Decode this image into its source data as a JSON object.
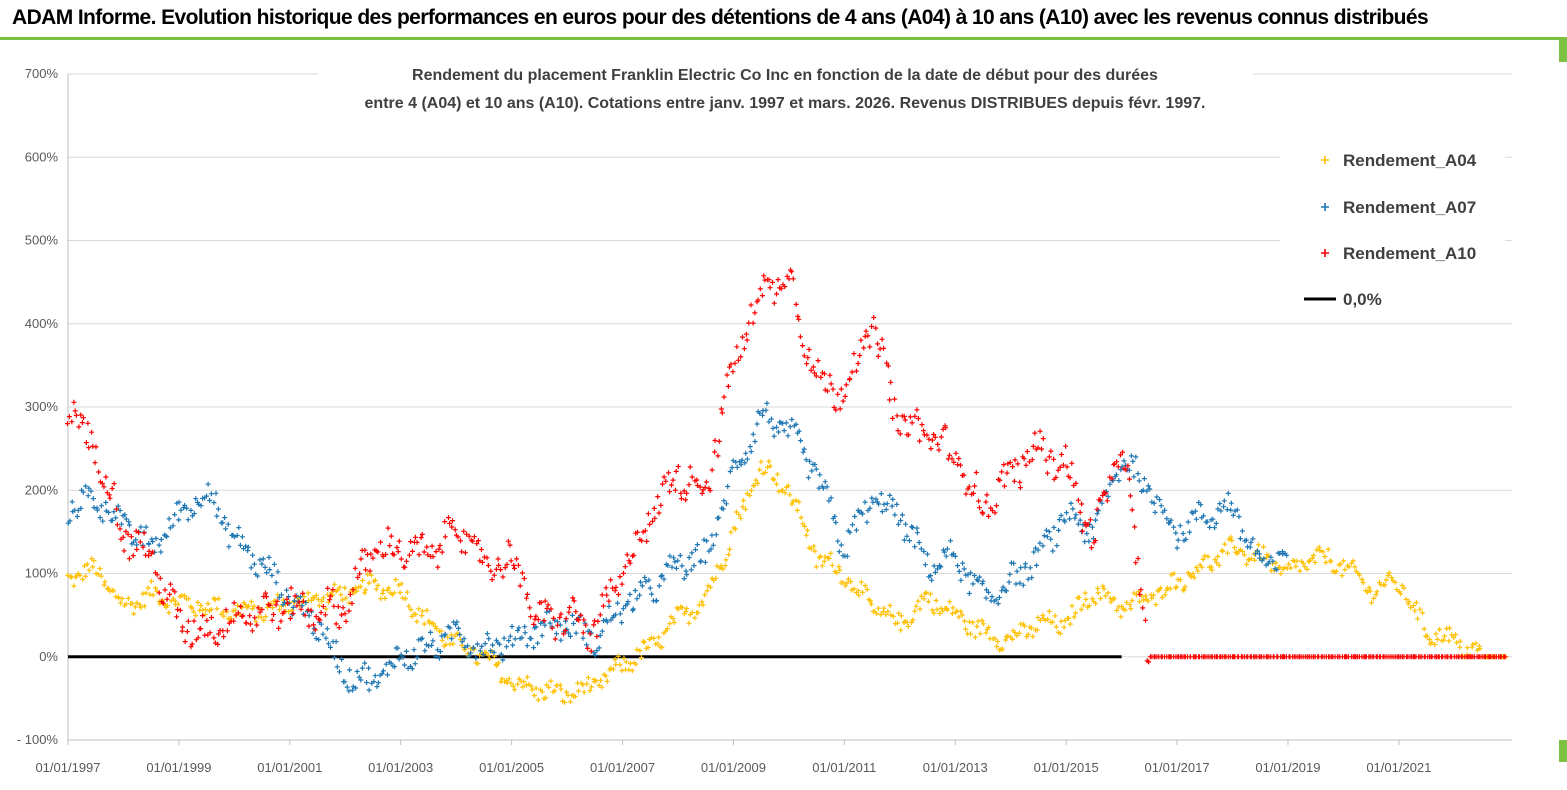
{
  "header": {
    "title": "ADAM Informe. Evolution historique des performances en euros pour des détentions de 4 ans (A04) à 10 ans (A10) avec les revenus connus distribués"
  },
  "chart_data": {
    "type": "scatter",
    "title_lines": [
      "Rendement du placement Franklin Electric Co Inc en fonction de la date de début pour des durées",
      "entre 4 (A04) et 10 ans (A10). Cotations entre janv. 1997 et mars. 2026. Revenus DISTRIBUES depuis févr. 1997."
    ],
    "ylim": [
      -100,
      700
    ],
    "yticks": [
      "- 100%",
      "0%",
      "100%",
      "200%",
      "300%",
      "400%",
      "500%",
      "600%",
      "700%"
    ],
    "yticks_values": [
      -100,
      0,
      100,
      200,
      300,
      400,
      500,
      600,
      700
    ],
    "xlim": [
      "1997-01-01",
      "2023-01-15"
    ],
    "xticks": [
      "01/01/1997",
      "01/01/1999",
      "01/01/2001",
      "01/01/2003",
      "01/01/2005",
      "01/01/2007",
      "01/01/2009",
      "01/01/2011",
      "01/01/2013",
      "01/01/2015",
      "01/01/2017",
      "01/01/2019",
      "01/01/2021"
    ],
    "grid": "horizontal",
    "legend_position": "top-right",
    "colors": {
      "A04": "#ffc000",
      "A07": "#1f77b4",
      "A10": "#ff0000",
      "zero": "#000000"
    },
    "series": [
      {
        "name": "Rendement_A04",
        "marker": "+",
        "x": [
          1997.0,
          1997.5,
          1998.0,
          1998.5,
          1999.0,
          1999.5,
          2000.0,
          2000.5,
          2001.0,
          2001.5,
          2002.0,
          2002.5,
          2003.0,
          2003.5,
          2004.0,
          2004.5,
          2005.0,
          2005.5,
          2006.0,
          2006.5,
          2007.0,
          2007.5,
          2008.0,
          2008.5,
          2009.0,
          2009.5,
          2010.0,
          2010.5,
          2011.0,
          2011.5,
          2012.0,
          2012.5,
          2013.0,
          2013.5,
          2014.0,
          2014.5,
          2015.0,
          2015.5,
          2016.0,
          2016.5,
          2017.0,
          2017.5,
          2018.0,
          2018.5,
          2019.0,
          2019.5,
          2020.0,
          2020.5,
          2021.0,
          2021.5,
          2022.0,
          2022.5,
          2023.0
        ],
        "values": [
          95,
          105,
          60,
          75,
          65,
          60,
          55,
          55,
          65,
          70,
          75,
          85,
          80,
          40,
          15,
          0,
          -30,
          -40,
          -45,
          -35,
          -10,
          10,
          45,
          70,
          150,
          230,
          200,
          120,
          100,
          60,
          40,
          70,
          50,
          30,
          20,
          40,
          40,
          80,
          60,
          70,
          90,
          110,
          130,
          120,
          100,
          120,
          110,
          80,
          90,
          30,
          20,
          0,
          0
        ]
      },
      {
        "name": "Rendement_A07",
        "marker": "+",
        "x": [
          1997.0,
          1997.5,
          1998.0,
          1998.5,
          1999.0,
          1999.5,
          2000.0,
          2000.5,
          2001.0,
          2001.5,
          2002.0,
          2002.5,
          2003.0,
          2003.5,
          2004.0,
          2004.5,
          2005.0,
          2005.5,
          2006.0,
          2006.5,
          2007.0,
          2007.5,
          2008.0,
          2008.5,
          2009.0,
          2009.5,
          2010.0,
          2010.5,
          2011.0,
          2011.5,
          2012.0,
          2012.5,
          2013.0,
          2013.5,
          2014.0,
          2014.5,
          2015.0,
          2015.5,
          2016.0,
          2016.5,
          2017.0,
          2017.5,
          2018.0,
          2018.5,
          2019.0
        ],
        "values": [
          180,
          190,
          160,
          130,
          170,
          200,
          140,
          110,
          70,
          40,
          -20,
          -30,
          0,
          10,
          30,
          10,
          20,
          35,
          40,
          20,
          60,
          80,
          110,
          120,
          220,
          290,
          270,
          220,
          130,
          190,
          170,
          110,
          120,
          70,
          90,
          120,
          170,
          150,
          240,
          200,
          150,
          170,
          180,
          110,
          120
        ]
      },
      {
        "name": "Rendement_A10",
        "marker": "+",
        "x": [
          1997.0,
          1997.5,
          1998.0,
          1998.5,
          1999.0,
          1999.5,
          2000.0,
          2000.5,
          2001.0,
          2001.5,
          2002.0,
          2002.5,
          2003.0,
          2003.5,
          2004.0,
          2004.5,
          2005.0,
          2005.5,
          2006.0,
          2006.5,
          2007.0,
          2007.5,
          2008.0,
          2008.5,
          2009.0,
          2009.5,
          2010.0,
          2010.5,
          2011.0,
          2011.5,
          2012.0,
          2012.5,
          2013.0,
          2013.5,
          2014.0,
          2014.5,
          2015.0,
          2015.5,
          2016.0,
          2016.5,
          2017.0,
          2017.5,
          2018.0,
          2018.5,
          2019.0,
          2019.5,
          2020.0,
          2020.5,
          2021.0,
          2021.5,
          2022.0,
          2022.5,
          2023.0
        ],
        "values": [
          300,
          250,
          150,
          120,
          40,
          30,
          50,
          55,
          60,
          55,
          60,
          130,
          130,
          120,
          160,
          110,
          120,
          40,
          50,
          30,
          100,
          170,
          220,
          200,
          350,
          440,
          460,
          330,
          320,
          400,
          280,
          270,
          240,
          180,
          220,
          250,
          230,
          140,
          260,
          0,
          0,
          0,
          0,
          0,
          0,
          0,
          0,
          0,
          0,
          0,
          0,
          0,
          0
        ]
      },
      {
        "name": "0,0%",
        "type": "line",
        "x": [
          1997.0,
          2016.0
        ],
        "values": [
          0,
          0
        ]
      }
    ]
  }
}
